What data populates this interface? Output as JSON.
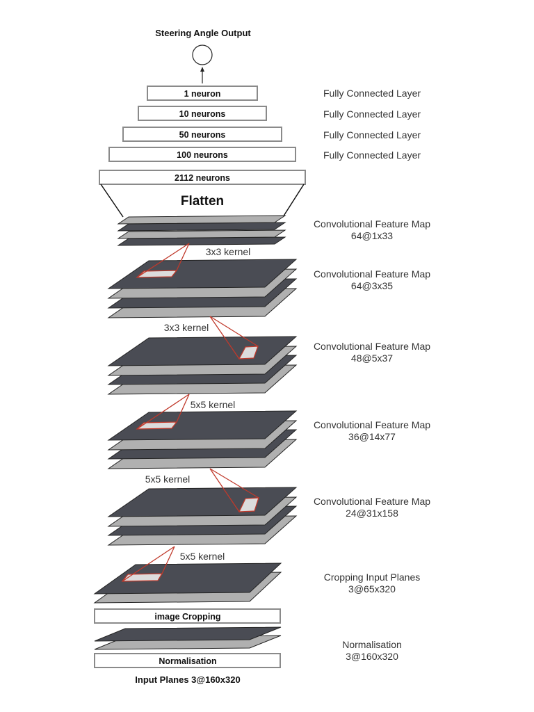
{
  "top": {
    "title": "Steering Angle Output"
  },
  "dense_layers": [
    {
      "box": "1 neuron",
      "label": "Fully Connected Layer"
    },
    {
      "box": "10 neurons",
      "label": "Fully Connected Layer"
    },
    {
      "box": "50 neurons",
      "label": "Fully Connected Layer"
    },
    {
      "box": "100 neurons",
      "label": "Fully Connected Layer"
    }
  ],
  "flatten": {
    "box": "2112 neurons",
    "label": "Flatten"
  },
  "feature_maps": [
    {
      "line1": "Convolutional Feature Map",
      "line2": "64@1x33"
    },
    {
      "line1": "Convolutional Feature Map",
      "line2": "64@3x35"
    },
    {
      "line1": "Convolutional Feature Map",
      "line2": "48@5x37"
    },
    {
      "line1": "Convolutional Feature Map",
      "line2": "36@14x77"
    },
    {
      "line1": "Convolutional Feature Map",
      "line2": "24@31x158"
    }
  ],
  "kernels": [
    "3x3 kernel",
    "3x3 kernel",
    "5x5 kernel",
    "5x5 kernel",
    "5x5 kernel"
  ],
  "cropping": {
    "line1": "Cropping Input Planes",
    "line2": "3@65x320",
    "box": "image Cropping"
  },
  "normalisation": {
    "line1": "Normalisation",
    "line2": "3@160x320",
    "box": "Normalisation"
  },
  "input": {
    "label": "Input Planes 3@160x320"
  },
  "colors": {
    "dark_plane": "#4a4c54",
    "light_plane": "#b0b0b0",
    "kernel_line": "#c0392b",
    "box_border": "#8a8a8a",
    "text": "#111111",
    "side_label": "#333333"
  }
}
